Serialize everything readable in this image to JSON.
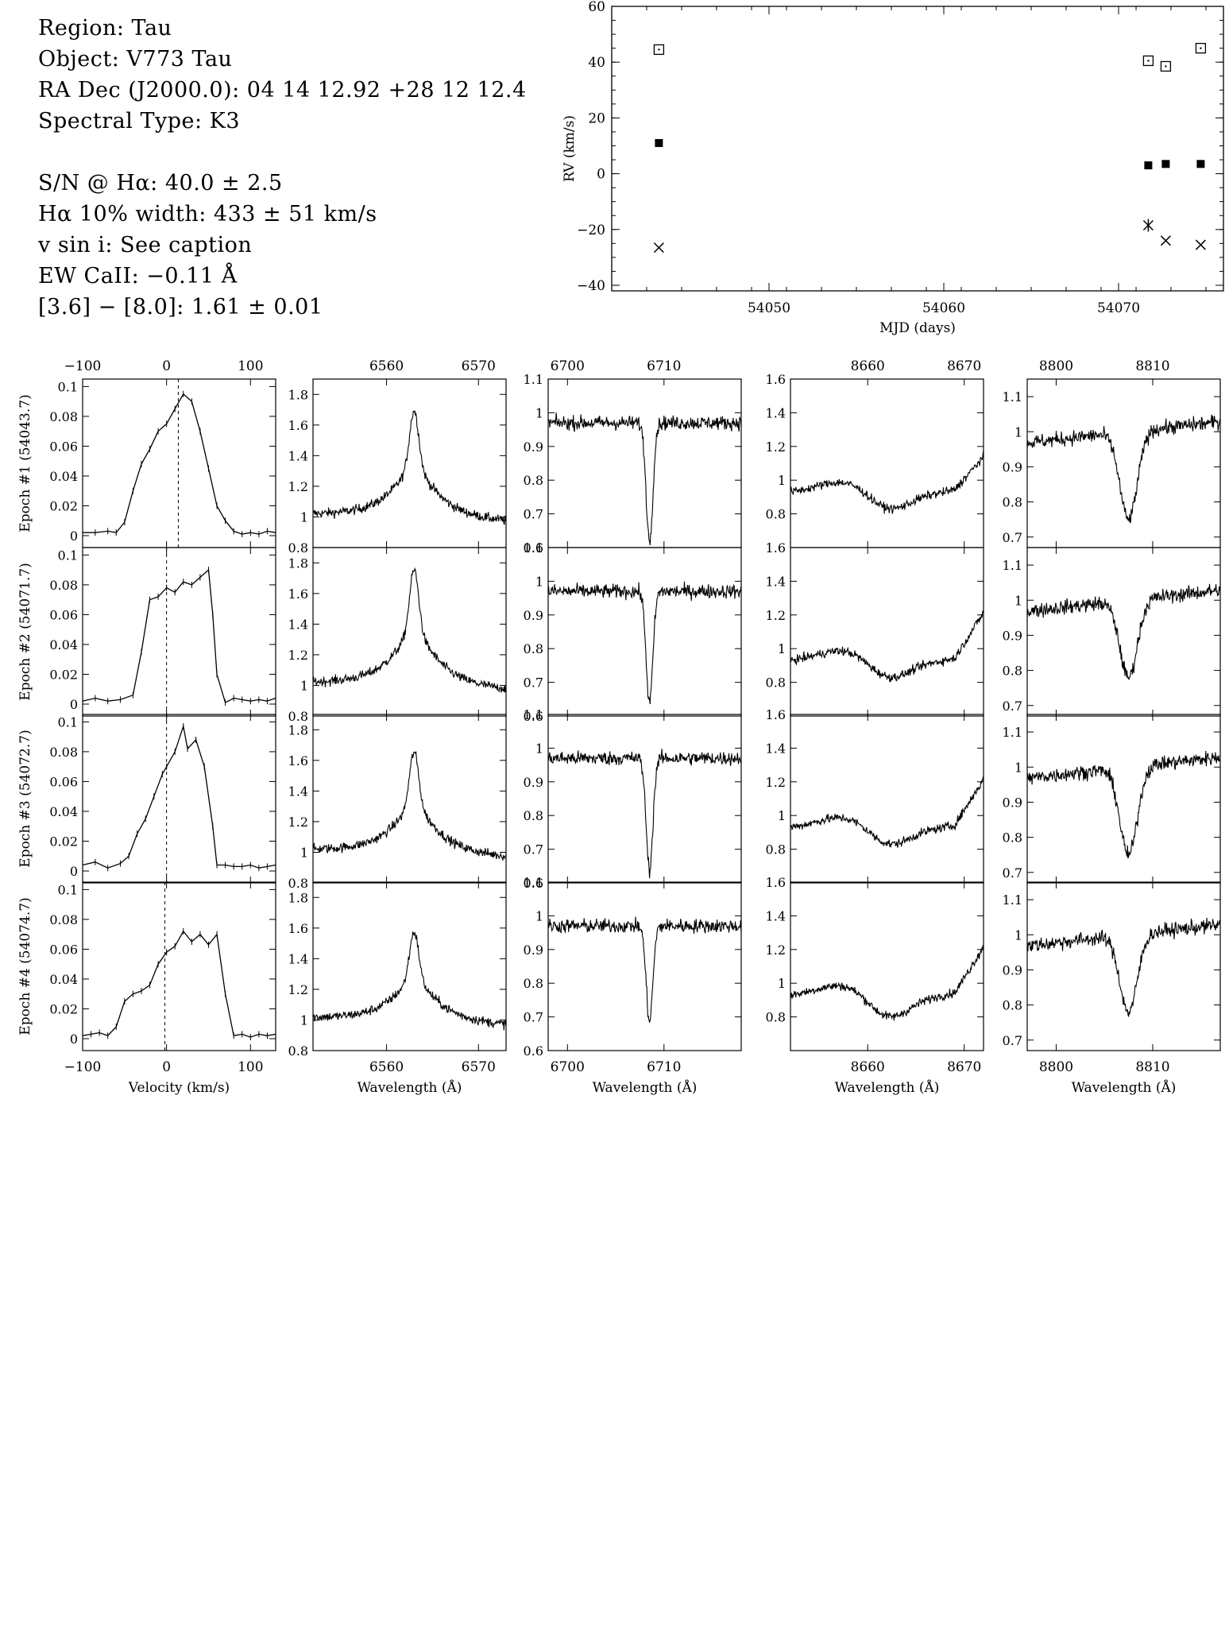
{
  "header": {
    "region": "Region: Tau",
    "object": "Object: V773 Tau",
    "radec": "RA Dec (J2000.0): 04 14 12.92 +28 12 12.4",
    "sptype": "Spectral Type: K3",
    "sn": "S/N @ Hα: 40.0 ± 2.5",
    "width10": "Hα 10% width: 433 ± 51 km/s",
    "vsini": "v sin i: See caption",
    "ewca": "EW CaII: −0.11 Å",
    "irac": "[3.6] − [8.0]: 1.61 ± 0.01"
  },
  "chart_data": [
    {
      "type": "scatter",
      "panel": "rv",
      "xlabel": "MJD (days)",
      "ylabel": "RV (km/s)",
      "xlim": [
        54041,
        54076
      ],
      "ylim": [
        -42,
        60
      ],
      "xticks": [
        54050,
        54060,
        54070
      ],
      "yticks": [
        -40,
        -20,
        0,
        20,
        40,
        60
      ],
      "series": [
        {
          "marker": "open-square",
          "x": [
            54043.7,
            54071.7,
            54072.7,
            54074.7
          ],
          "y": [
            44.5,
            40.5,
            38.5,
            45
          ]
        },
        {
          "marker": "filled-square",
          "x": [
            54043.7,
            54071.7,
            54072.7,
            54074.7
          ],
          "y": [
            11,
            3,
            3.5,
            3.5
          ]
        },
        {
          "marker": "cross",
          "x": [
            54043.7,
            54071.7,
            54072.7,
            54074.7
          ],
          "y": [
            -26.5,
            -18.5,
            -24,
            -25.5
          ]
        },
        {
          "marker": "plus",
          "x": [
            54071.7
          ],
          "y": [
            -18.5
          ]
        }
      ]
    },
    {
      "type": "line",
      "panel": "spectra-grid",
      "epoch_labels": [
        "Epoch #1 (54043.7)",
        "Epoch #2 (54071.7)",
        "Epoch #3 (54072.7)",
        "Epoch #4 (54074.7)"
      ],
      "epoch_velocity_markers": [
        14,
        0,
        0,
        -2
      ],
      "columns": [
        {
          "id": "ccf",
          "xlabel": "Velocity (km/s)",
          "xlim": [
            -100,
            130
          ],
          "xticks": [
            -100,
            0,
            100
          ],
          "ylim": [
            -0.008,
            0.105
          ],
          "yticks": [
            0,
            0.02,
            0.04,
            0.06,
            0.08,
            0.1
          ],
          "epochs": [
            {
              "x": [
                -100,
                -85,
                -70,
                -60,
                -50,
                -40,
                -30,
                -20,
                -10,
                0,
                10,
                20,
                30,
                40,
                50,
                60,
                70,
                80,
                90,
                100,
                110,
                120,
                130
              ],
              "y": [
                0.002,
                0.002,
                0.003,
                0.002,
                0.009,
                0.03,
                0.048,
                0.058,
                0.07,
                0.075,
                0.085,
                0.095,
                0.09,
                0.07,
                0.045,
                0.02,
                0.01,
                0.003,
                0.001,
                0.002,
                0.001,
                0.003,
                0.002
              ]
            },
            {
              "x": [
                -100,
                -85,
                -70,
                -55,
                -40,
                -30,
                -20,
                -10,
                0,
                10,
                20,
                30,
                40,
                50,
                55,
                60,
                70,
                80,
                90,
                100,
                110,
                120,
                130
              ],
              "y": [
                0.002,
                0.004,
                0.002,
                0.003,
                0.006,
                0.035,
                0.07,
                0.072,
                0.078,
                0.075,
                0.082,
                0.08,
                0.085,
                0.09,
                0.06,
                0.02,
                0.001,
                0.004,
                0.003,
                0.002,
                0.003,
                0.002,
                0.004
              ]
            },
            {
              "x": [
                -100,
                -85,
                -70,
                -55,
                -45,
                -35,
                -25,
                -15,
                -5,
                0,
                10,
                20,
                25,
                35,
                45,
                55,
                60,
                70,
                80,
                90,
                100,
                110,
                120,
                130
              ],
              "y": [
                0.004,
                0.006,
                0.002,
                0.005,
                0.01,
                0.025,
                0.035,
                0.05,
                0.065,
                0.07,
                0.08,
                0.097,
                0.082,
                0.088,
                0.07,
                0.03,
                0.004,
                0.004,
                0.003,
                0.003,
                0.004,
                0.002,
                0.003,
                0.004
              ]
            },
            {
              "x": [
                -100,
                -90,
                -80,
                -70,
                -60,
                -50,
                -40,
                -30,
                -20,
                -10,
                0,
                10,
                20,
                30,
                40,
                50,
                60,
                70,
                80,
                90,
                100,
                110,
                120,
                130
              ],
              "y": [
                0.002,
                0.003,
                0.004,
                0.002,
                0.008,
                0.025,
                0.03,
                0.032,
                0.036,
                0.05,
                0.058,
                0.062,
                0.072,
                0.065,
                0.07,
                0.063,
                0.07,
                0.03,
                0.002,
                0.003,
                0.001,
                0.003,
                0.002,
                0.003
              ]
            }
          ]
        },
        {
          "id": "halpha",
          "xlabel": "Wavelength (Å)",
          "xlim": [
            6552,
            6573
          ],
          "xticks": [
            6560,
            6570
          ],
          "ylim": [
            0.8,
            1.9
          ],
          "yticks": [
            0.8,
            1.0,
            1.2,
            1.4,
            1.6,
            1.8
          ],
          "line_center": 6563,
          "amplitudes": [
            0.72,
            0.78,
            0.68,
            0.6
          ],
          "base": 1.0,
          "noise": 0.03
        },
        {
          "id": "li",
          "xlabel": "Wavelength (Å)",
          "xlim": [
            6698,
            6718
          ],
          "xticks": [
            6700,
            6710
          ],
          "ylim": [
            0.6,
            1.1
          ],
          "yticks": [
            0.6,
            0.7,
            0.8,
            0.9,
            1.0,
            1.1
          ],
          "line_center": 6708.5,
          "depths": [
            0.35,
            0.33,
            0.33,
            0.28
          ],
          "base": 0.97,
          "noise": 0.02
        },
        {
          "id": "ca",
          "xlabel": "Wavelength (Å)",
          "xlim": [
            8652,
            8672
          ],
          "xticks": [
            8660,
            8670
          ],
          "ylim": [
            0.6,
            1.6
          ],
          "yticks": [
            0.8,
            1.0,
            1.2,
            1.4,
            1.6
          ],
          "line_center": 8662,
          "depths": [
            0.15,
            0.15,
            0.15,
            0.18
          ],
          "base": 0.97,
          "noise": 0.025
        },
        {
          "id": "pa",
          "xlabel": "Wavelength (Å)",
          "xlim": [
            8797,
            8817
          ],
          "xticks": [
            8800,
            8810
          ],
          "ylim": [
            0.67,
            1.15
          ],
          "yticks": [
            0.7,
            0.8,
            0.9,
            1.0,
            1.1
          ],
          "line_center": 8807.5,
          "depths": [
            0.25,
            0.22,
            0.25,
            0.22
          ],
          "base": 1.0,
          "noise": 0.02
        }
      ]
    }
  ]
}
